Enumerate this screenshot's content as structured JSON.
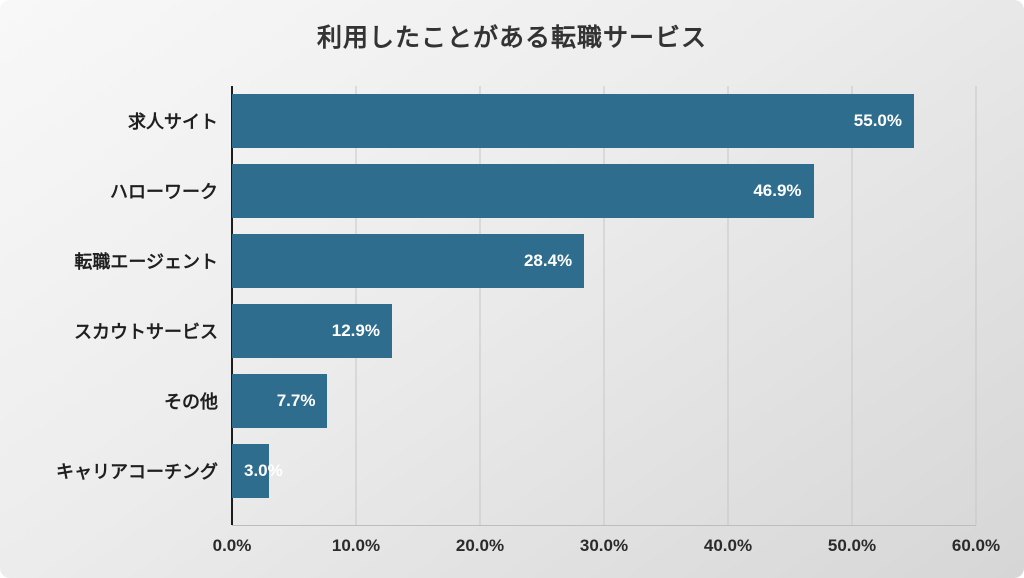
{
  "title": "利用したことがある転職サービス",
  "chart_data": {
    "type": "bar",
    "orientation": "horizontal",
    "title": "利用したことがある転職サービス",
    "categories": [
      "求人サイト",
      "ハローワーク",
      "転職エージェント",
      "スカウトサービス",
      "その他",
      "キャリアコーチング"
    ],
    "values": [
      55.0,
      46.9,
      28.4,
      12.9,
      7.7,
      3.0
    ],
    "value_labels": [
      "55.0%",
      "46.9%",
      "28.4%",
      "12.9%",
      "7.7%",
      "3.0%"
    ],
    "xlabel": "",
    "ylabel": "",
    "xlim": [
      0,
      60
    ],
    "x_ticks": [
      "0.0%",
      "10.0%",
      "20.0%",
      "30.0%",
      "40.0%",
      "50.0%",
      "60.0%"
    ],
    "x_tick_values": [
      0,
      10,
      20,
      30,
      40,
      50,
      60
    ],
    "grid": true,
    "legend": "none",
    "bar_color": "#2e6d8e",
    "value_label_color": "#ffffff"
  }
}
